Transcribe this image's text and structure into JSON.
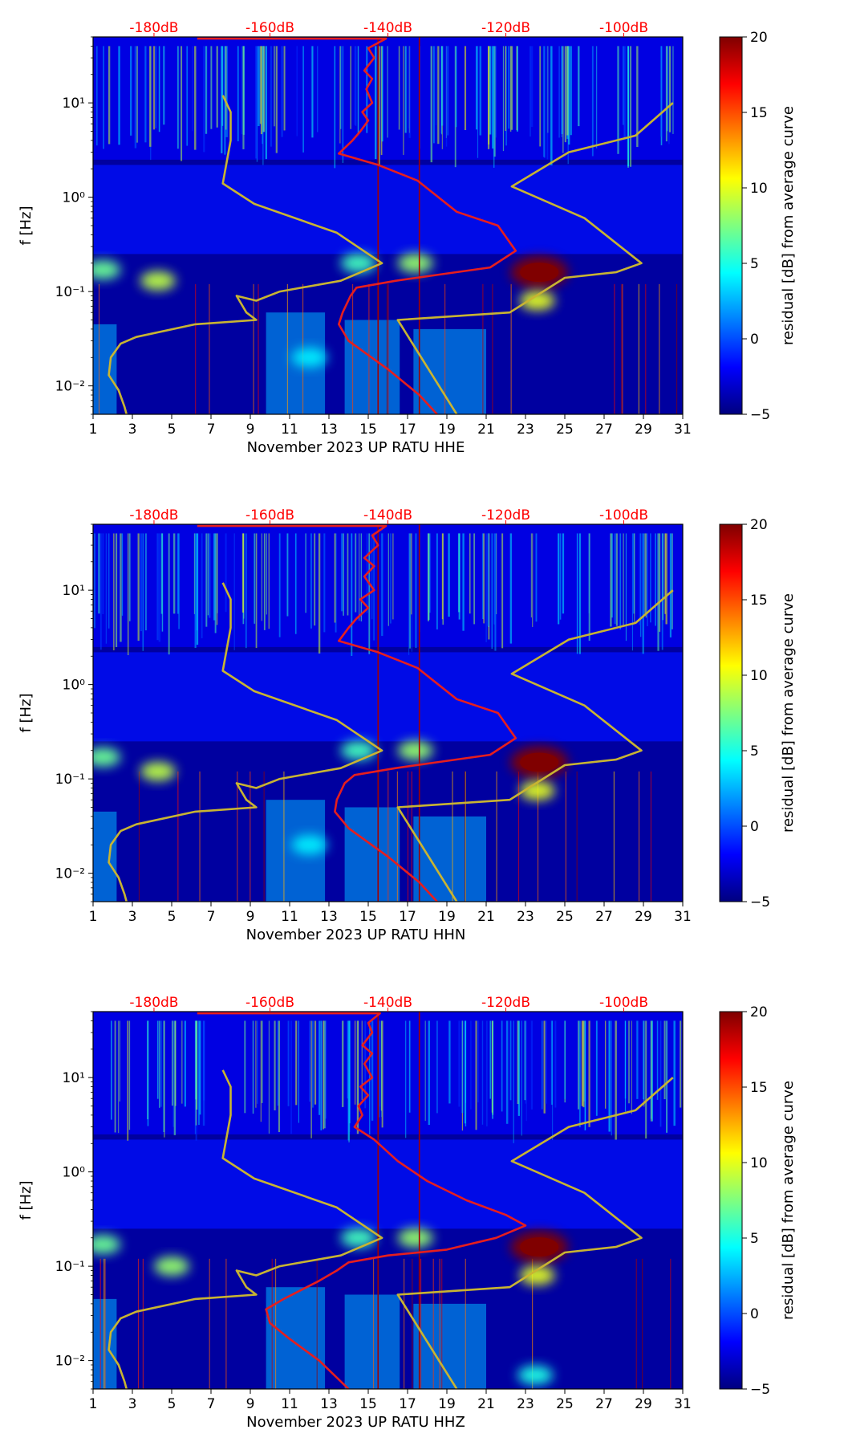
{
  "figure": {
    "colorbar": {
      "label": "residual [dB] from average curve",
      "ticks": [
        20,
        15,
        10,
        5,
        0,
        -5
      ],
      "tick_labels": [
        "20",
        "15",
        "10",
        "5",
        "0",
        "−5"
      ],
      "colormap": "jet",
      "colors": [
        "#00007f",
        "#0000ff",
        "#007fff",
        "#00ffff",
        "#7fff7f",
        "#ffff00",
        "#ff7f00",
        "#ff0000",
        "#7f0000"
      ]
    },
    "line_colors": {
      "noise_model": "#c8b432",
      "median_curve": "#e61e1e",
      "top_labels": "#ff0000"
    }
  },
  "chart_data": [
    {
      "type": "heatmap",
      "title": "",
      "xlabel": "November 2023 UP RATU  HHE",
      "ylabel": "f [Hz]",
      "x_ticks": [
        1,
        3,
        5,
        7,
        9,
        11,
        13,
        15,
        17,
        19,
        21,
        23,
        25,
        27,
        29,
        31
      ],
      "x_tick_labels": [
        "1",
        "3",
        "5",
        "7",
        "9",
        "11",
        "13",
        "15",
        "17",
        "19",
        "21",
        "23",
        "25",
        "27",
        "29",
        "31"
      ],
      "xlim": [
        1,
        31
      ],
      "y_scale": "log",
      "ylim": [
        0.005,
        50
      ],
      "y_ticks": [
        0.01,
        0.1,
        1,
        10
      ],
      "y_tick_labels": [
        "10⁻²",
        "10⁻¹",
        "10⁰",
        "10¹"
      ],
      "top_axis_labels": [
        "-180dB",
        "-160dB",
        "-140dB",
        "-120dB",
        "-100dB"
      ],
      "top_axis_positions": [
        4.1,
        10.0,
        16.0,
        22.0,
        28.0
      ],
      "clim": [
        -5,
        20
      ],
      "hotspots": [
        {
          "day": 23.7,
          "freq": 0.16,
          "value": 20
        },
        {
          "day": 23.6,
          "freq": 0.08,
          "value": 10
        },
        {
          "day": 1.5,
          "freq": 0.17,
          "value": 7
        },
        {
          "day": 4.3,
          "freq": 0.13,
          "value": 9
        },
        {
          "day": 14.5,
          "freq": 0.2,
          "value": 6
        },
        {
          "day": 17.4,
          "freq": 0.2,
          "value": 8
        },
        {
          "day": 12,
          "freq": 0.02,
          "value": 4
        }
      ],
      "series": [
        {
          "name": "noise model (gold)",
          "points": [
            [
              7.6,
              12
            ],
            [
              8,
              8
            ],
            [
              8,
              4
            ],
            [
              7.6,
              1.4
            ],
            [
              9.2,
              0.85
            ],
            [
              13.4,
              0.42
            ],
            [
              15.7,
              0.2
            ],
            [
              13.6,
              0.13
            ],
            [
              10.5,
              0.1
            ],
            [
              9.3,
              0.08
            ],
            [
              8.3,
              0.09
            ],
            [
              8.8,
              0.06
            ],
            [
              9.3,
              0.05
            ],
            [
              6.2,
              0.045
            ],
            [
              3.2,
              0.033
            ],
            [
              2.4,
              0.028
            ],
            [
              1.9,
              0.02
            ],
            [
              1.8,
              0.013
            ],
            [
              2.3,
              0.009
            ],
            [
              2.6,
              0.006
            ],
            [
              2.7,
              0.005
            ]
          ]
        },
        {
          "name": "noise model (gold) right",
          "points": [
            [
              19.5,
              0.005
            ],
            [
              16.5,
              0.05
            ],
            [
              22.2,
              0.06
            ],
            [
              25,
              0.14
            ],
            [
              27.6,
              0.16
            ],
            [
              28.9,
              0.2
            ],
            [
              26,
              0.6
            ],
            [
              22.3,
              1.3
            ],
            [
              25.2,
              3
            ],
            [
              28.6,
              4.5
            ],
            [
              30.5,
              10
            ]
          ]
        },
        {
          "name": "median curve (red)",
          "points": [
            [
              6.3,
              48
            ],
            [
              15.9,
              48
            ],
            [
              15,
              38
            ],
            [
              15.3,
              30
            ],
            [
              14.8,
              22
            ],
            [
              15.2,
              18
            ],
            [
              14.9,
              14
            ],
            [
              15.2,
              10
            ],
            [
              14.7,
              8
            ],
            [
              15,
              6.5
            ],
            [
              14.6,
              5
            ],
            [
              14.2,
              4
            ],
            [
              13.5,
              2.9
            ],
            [
              15.5,
              2.2
            ],
            [
              17.5,
              1.5
            ],
            [
              19.5,
              0.7
            ],
            [
              21.6,
              0.5
            ],
            [
              22.5,
              0.27
            ],
            [
              21.2,
              0.18
            ],
            [
              18.5,
              0.15
            ],
            [
              16.4,
              0.13
            ],
            [
              14.4,
              0.11
            ],
            [
              14.1,
              0.09
            ],
            [
              13.7,
              0.06
            ],
            [
              13.5,
              0.045
            ],
            [
              14,
              0.03
            ],
            [
              16,
              0.015
            ],
            [
              17.6,
              0.008
            ],
            [
              18.5,
              0.005
            ]
          ]
        }
      ]
    },
    {
      "type": "heatmap",
      "title": "",
      "xlabel": "November 2023 UP RATU  HHN",
      "ylabel": "f [Hz]",
      "x_ticks": [
        1,
        3,
        5,
        7,
        9,
        11,
        13,
        15,
        17,
        19,
        21,
        23,
        25,
        27,
        29,
        31
      ],
      "x_tick_labels": [
        "1",
        "3",
        "5",
        "7",
        "9",
        "11",
        "13",
        "15",
        "17",
        "19",
        "21",
        "23",
        "25",
        "27",
        "29",
        "31"
      ],
      "xlim": [
        1,
        31
      ],
      "y_scale": "log",
      "ylim": [
        0.005,
        50
      ],
      "y_ticks": [
        0.01,
        0.1,
        1,
        10
      ],
      "y_tick_labels": [
        "10⁻²",
        "10⁻¹",
        "10⁰",
        "10¹"
      ],
      "top_axis_labels": [
        "-180dB",
        "-160dB",
        "-140dB",
        "-120dB",
        "-100dB"
      ],
      "top_axis_positions": [
        4.1,
        10.0,
        16.0,
        22.0,
        28.0
      ],
      "clim": [
        -5,
        20
      ],
      "hotspots": [
        {
          "day": 23.7,
          "freq": 0.15,
          "value": 20
        },
        {
          "day": 23.6,
          "freq": 0.075,
          "value": 10
        },
        {
          "day": 1.5,
          "freq": 0.17,
          "value": 7
        },
        {
          "day": 4.3,
          "freq": 0.12,
          "value": 9
        },
        {
          "day": 14.5,
          "freq": 0.2,
          "value": 6
        },
        {
          "day": 17.4,
          "freq": 0.2,
          "value": 8
        },
        {
          "day": 12,
          "freq": 0.02,
          "value": 4
        }
      ],
      "series": [
        {
          "name": "noise model (gold)",
          "points": [
            [
              7.6,
              12
            ],
            [
              8,
              8
            ],
            [
              8,
              4
            ],
            [
              7.6,
              1.4
            ],
            [
              9.2,
              0.85
            ],
            [
              13.4,
              0.42
            ],
            [
              15.7,
              0.2
            ],
            [
              13.6,
              0.13
            ],
            [
              10.5,
              0.1
            ],
            [
              9.3,
              0.08
            ],
            [
              8.3,
              0.09
            ],
            [
              8.8,
              0.06
            ],
            [
              9.3,
              0.05
            ],
            [
              6.2,
              0.045
            ],
            [
              3.2,
              0.033
            ],
            [
              2.4,
              0.028
            ],
            [
              1.9,
              0.02
            ],
            [
              1.8,
              0.013
            ],
            [
              2.3,
              0.009
            ],
            [
              2.6,
              0.006
            ],
            [
              2.7,
              0.005
            ]
          ]
        },
        {
          "name": "noise model (gold) right",
          "points": [
            [
              19.5,
              0.005
            ],
            [
              16.5,
              0.05
            ],
            [
              22.2,
              0.06
            ],
            [
              25,
              0.14
            ],
            [
              27.6,
              0.16
            ],
            [
              28.9,
              0.2
            ],
            [
              26,
              0.6
            ],
            [
              22.3,
              1.3
            ],
            [
              25.2,
              3
            ],
            [
              28.6,
              4.5
            ],
            [
              30.5,
              10
            ]
          ]
        },
        {
          "name": "median curve (red)",
          "points": [
            [
              6.3,
              48
            ],
            [
              15.9,
              48
            ],
            [
              15.2,
              38
            ],
            [
              15.5,
              30
            ],
            [
              14.8,
              22
            ],
            [
              15.3,
              18
            ],
            [
              14.8,
              14
            ],
            [
              15.3,
              10
            ],
            [
              14.6,
              8
            ],
            [
              15,
              6.5
            ],
            [
              14.4,
              5
            ],
            [
              14,
              4
            ],
            [
              13.5,
              2.9
            ],
            [
              15.5,
              2.2
            ],
            [
              17.5,
              1.5
            ],
            [
              19.5,
              0.7
            ],
            [
              21.6,
              0.5
            ],
            [
              22.5,
              0.27
            ],
            [
              21.2,
              0.18
            ],
            [
              18.5,
              0.15
            ],
            [
              16.4,
              0.13
            ],
            [
              14.3,
              0.11
            ],
            [
              13.8,
              0.09
            ],
            [
              13.4,
              0.06
            ],
            [
              13.3,
              0.045
            ],
            [
              14,
              0.03
            ],
            [
              16,
              0.015
            ],
            [
              17.6,
              0.008
            ],
            [
              18.5,
              0.005
            ]
          ]
        }
      ]
    },
    {
      "type": "heatmap",
      "title": "",
      "xlabel": "November 2023 UP RATU  HHZ",
      "ylabel": "f [Hz]",
      "x_ticks": [
        1,
        3,
        5,
        7,
        9,
        11,
        13,
        15,
        17,
        19,
        21,
        23,
        25,
        27,
        29,
        31
      ],
      "x_tick_labels": [
        "1",
        "3",
        "5",
        "7",
        "9",
        "11",
        "13",
        "15",
        "17",
        "19",
        "21",
        "23",
        "25",
        "27",
        "29",
        "31"
      ],
      "xlim": [
        1,
        31
      ],
      "y_scale": "log",
      "ylim": [
        0.005,
        50
      ],
      "y_ticks": [
        0.01,
        0.1,
        1,
        10
      ],
      "y_tick_labels": [
        "10⁻²",
        "10⁻¹",
        "10⁰",
        "10¹"
      ],
      "top_axis_labels": [
        "-180dB",
        "-160dB",
        "-140dB",
        "-120dB",
        "-100dB"
      ],
      "top_axis_positions": [
        4.1,
        10.0,
        16.0,
        22.0,
        28.0
      ],
      "clim": [
        -5,
        20
      ],
      "hotspots": [
        {
          "day": 23.7,
          "freq": 0.16,
          "value": 20
        },
        {
          "day": 23.6,
          "freq": 0.08,
          "value": 10
        },
        {
          "day": 1.5,
          "freq": 0.17,
          "value": 7
        },
        {
          "day": 5,
          "freq": 0.1,
          "value": 8
        },
        {
          "day": 14.5,
          "freq": 0.2,
          "value": 6
        },
        {
          "day": 17.4,
          "freq": 0.2,
          "value": 8
        },
        {
          "day": 23.5,
          "freq": 0.007,
          "value": 5
        }
      ],
      "series": [
        {
          "name": "noise model (gold)",
          "points": [
            [
              7.6,
              12
            ],
            [
              8,
              8
            ],
            [
              8,
              4
            ],
            [
              7.6,
              1.4
            ],
            [
              9.2,
              0.85
            ],
            [
              13.4,
              0.42
            ],
            [
              15.7,
              0.2
            ],
            [
              13.6,
              0.13
            ],
            [
              10.5,
              0.1
            ],
            [
              9.3,
              0.08
            ],
            [
              8.3,
              0.09
            ],
            [
              8.8,
              0.06
            ],
            [
              9.3,
              0.05
            ],
            [
              6.2,
              0.045
            ],
            [
              3.2,
              0.033
            ],
            [
              2.4,
              0.028
            ],
            [
              1.9,
              0.02
            ],
            [
              1.8,
              0.013
            ],
            [
              2.3,
              0.009
            ],
            [
              2.6,
              0.006
            ],
            [
              2.7,
              0.005
            ]
          ]
        },
        {
          "name": "noise model (gold) right",
          "points": [
            [
              19.5,
              0.005
            ],
            [
              16.5,
              0.05
            ],
            [
              22.2,
              0.06
            ],
            [
              25,
              0.14
            ],
            [
              27.6,
              0.16
            ],
            [
              28.9,
              0.2
            ],
            [
              26,
              0.6
            ],
            [
              22.3,
              1.3
            ],
            [
              25.2,
              3
            ],
            [
              28.6,
              4.5
            ],
            [
              30.5,
              10
            ]
          ]
        },
        {
          "name": "median curve (red)",
          "points": [
            [
              6.3,
              48
            ],
            [
              15.6,
              48
            ],
            [
              15,
              38
            ],
            [
              15.2,
              30
            ],
            [
              14.7,
              22
            ],
            [
              15.2,
              18
            ],
            [
              14.8,
              14
            ],
            [
              15.2,
              10
            ],
            [
              14.6,
              8
            ],
            [
              15,
              6.5
            ],
            [
              14.5,
              5
            ],
            [
              14.7,
              4
            ],
            [
              14.3,
              3
            ],
            [
              15.3,
              2.2
            ],
            [
              16.5,
              1.3
            ],
            [
              18,
              0.8
            ],
            [
              20,
              0.5
            ],
            [
              22,
              0.35
            ],
            [
              23,
              0.27
            ],
            [
              21.5,
              0.2
            ],
            [
              19,
              0.15
            ],
            [
              16,
              0.13
            ],
            [
              14,
              0.11
            ],
            [
              13.4,
              0.09
            ],
            [
              12.5,
              0.07
            ],
            [
              10.7,
              0.045
            ],
            [
              9.8,
              0.035
            ],
            [
              10,
              0.025
            ],
            [
              11,
              0.017
            ],
            [
              12.5,
              0.01
            ],
            [
              14,
              0.005
            ]
          ]
        }
      ]
    }
  ]
}
